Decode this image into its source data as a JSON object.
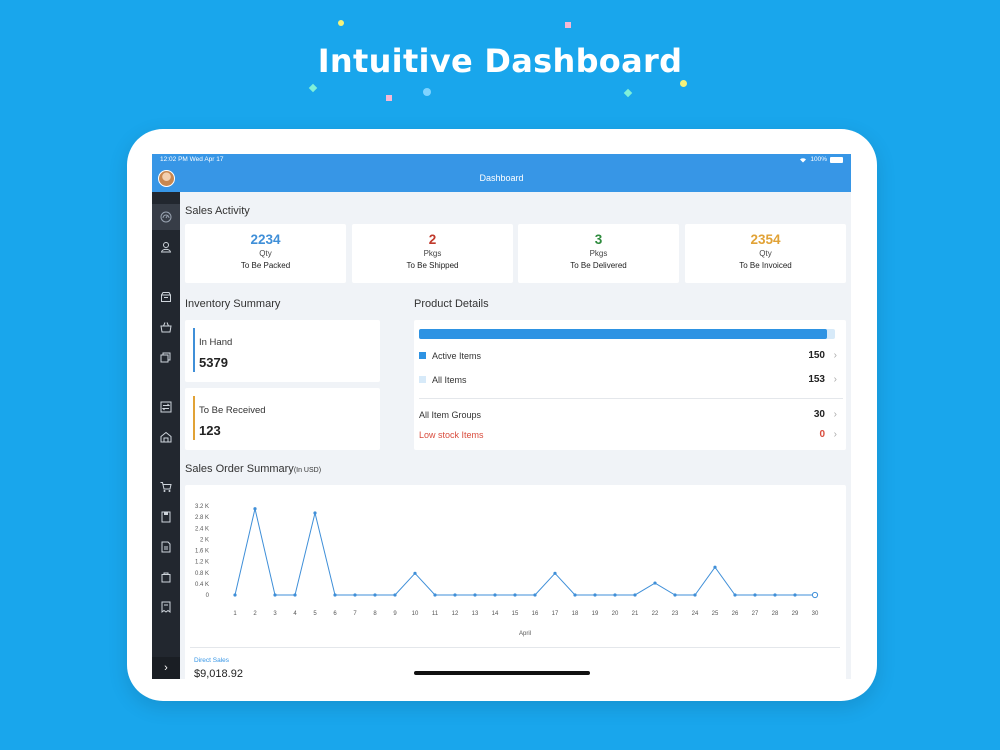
{
  "headline": "Intuitive Dashboard",
  "status_bar": {
    "time": "12:02 PM  Wed Apr 17",
    "battery": "100%"
  },
  "nav": {
    "title": "Dashboard"
  },
  "sidebar": {
    "icons": [
      "dashboard-icon",
      "contacts-icon",
      "items-icon",
      "item-groups-icon",
      "composite-items-icon",
      "transfer-orders-icon",
      "warehouses-icon",
      "cart-icon",
      "sales-orders-icon",
      "invoices-icon",
      "bag-icon",
      "bills-icon"
    ],
    "expand_glyph": "›"
  },
  "sales_activity": {
    "title": "Sales Activity",
    "cards": [
      {
        "value": "2234",
        "unit": "Qty",
        "label": "To Be Packed",
        "color": "#3f8fd8"
      },
      {
        "value": "2",
        "unit": "Pkgs",
        "label": "To Be Shipped",
        "color": "#c0392b"
      },
      {
        "value": "3",
        "unit": "Pkgs",
        "label": "To Be Delivered",
        "color": "#2e8b3d"
      },
      {
        "value": "2354",
        "unit": "Qty",
        "label": "To Be Invoiced",
        "color": "#e1a236"
      }
    ]
  },
  "inventory_summary": {
    "title": "Inventory Summary",
    "in_hand": {
      "label": "In Hand",
      "value": "5379",
      "color": "#3f8fd8"
    },
    "to_be_received": {
      "label": "To Be Received",
      "value": "123",
      "color": "#e1a236"
    }
  },
  "product_details": {
    "title": "Product Details",
    "active_ratio": 0.98,
    "active_items": {
      "label": "Active Items",
      "value": "150",
      "color": "#2e93e3"
    },
    "all_items": {
      "label": "All Items",
      "value": "153",
      "color": "#d7eaf9"
    },
    "all_item_groups": {
      "label": "All Item Groups",
      "value": "30"
    },
    "low_stock": {
      "label": "Low stock Items",
      "value": "0",
      "color": "#d94c3d"
    }
  },
  "sales_order_summary": {
    "title": "Sales Order Summary",
    "subtitle": "(In USD)",
    "direct_sales_label": "Direct Sales",
    "direct_sales_value": "$9,018.92"
  },
  "chart_data": {
    "type": "line",
    "xlabel": "April",
    "ylabel": "",
    "x": [
      1,
      2,
      3,
      4,
      5,
      6,
      7,
      8,
      9,
      10,
      11,
      12,
      13,
      14,
      15,
      16,
      17,
      18,
      19,
      20,
      21,
      22,
      23,
      24,
      25,
      26,
      27,
      28,
      29,
      30
    ],
    "series": [
      {
        "values": [
          0,
          3100,
          0,
          0,
          2950,
          0,
          0,
          0,
          0,
          780,
          0,
          0,
          0,
          0,
          0,
          0,
          780,
          0,
          0,
          0,
          0,
          430,
          0,
          0,
          1000,
          0,
          0,
          0,
          0,
          0
        ]
      }
    ],
    "yticks": [
      0,
      400,
      800,
      1200,
      1600,
      2000,
      2400,
      2800,
      3200
    ],
    "ytick_labels": [
      "0",
      "0.4 K",
      "0.8 K",
      "1.2 K",
      "1.6 K",
      "2 K",
      "2.4 K",
      "2.8 K",
      "3.2 K"
    ],
    "ylim": [
      0,
      3200
    ],
    "grid": false,
    "color": "#3f8fd8"
  }
}
